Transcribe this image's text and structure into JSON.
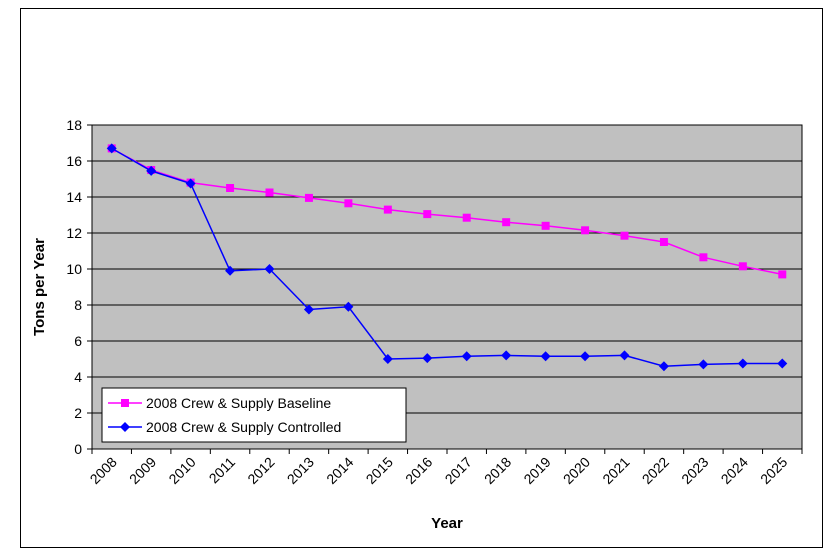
{
  "chart_data": {
    "type": "line",
    "xlabel": "Year",
    "ylabel": "Tons per Year",
    "categories": [
      "2008",
      "2009",
      "2010",
      "2011",
      "2012",
      "2013",
      "2014",
      "2015",
      "2016",
      "2017",
      "2018",
      "2019",
      "2020",
      "2021",
      "2022",
      "2023",
      "2024",
      "2025"
    ],
    "series": [
      {
        "name": "2008 Crew & Supply Baseline",
        "color": "#ff00ff",
        "marker": "square",
        "values": [
          16.7,
          15.5,
          14.8,
          14.5,
          14.25,
          13.95,
          13.65,
          13.3,
          13.05,
          12.85,
          12.6,
          12.4,
          12.15,
          11.85,
          11.5,
          10.65,
          10.15,
          9.7
        ]
      },
      {
        "name": "2008 Crew & Supply Controlled",
        "color": "#0000ff",
        "marker": "diamond",
        "values": [
          16.7,
          15.45,
          14.75,
          9.9,
          10.0,
          7.75,
          7.9,
          5.0,
          5.05,
          5.15,
          5.2,
          5.15,
          5.15,
          5.2,
          4.6,
          4.7,
          4.75,
          4.75
        ]
      }
    ],
    "ylim": [
      0,
      18
    ],
    "yticks": [
      0,
      2,
      4,
      6,
      8,
      10,
      12,
      14,
      16,
      18
    ],
    "grid": true,
    "legend": "lower left",
    "plot_background": "#c0c0c0"
  }
}
